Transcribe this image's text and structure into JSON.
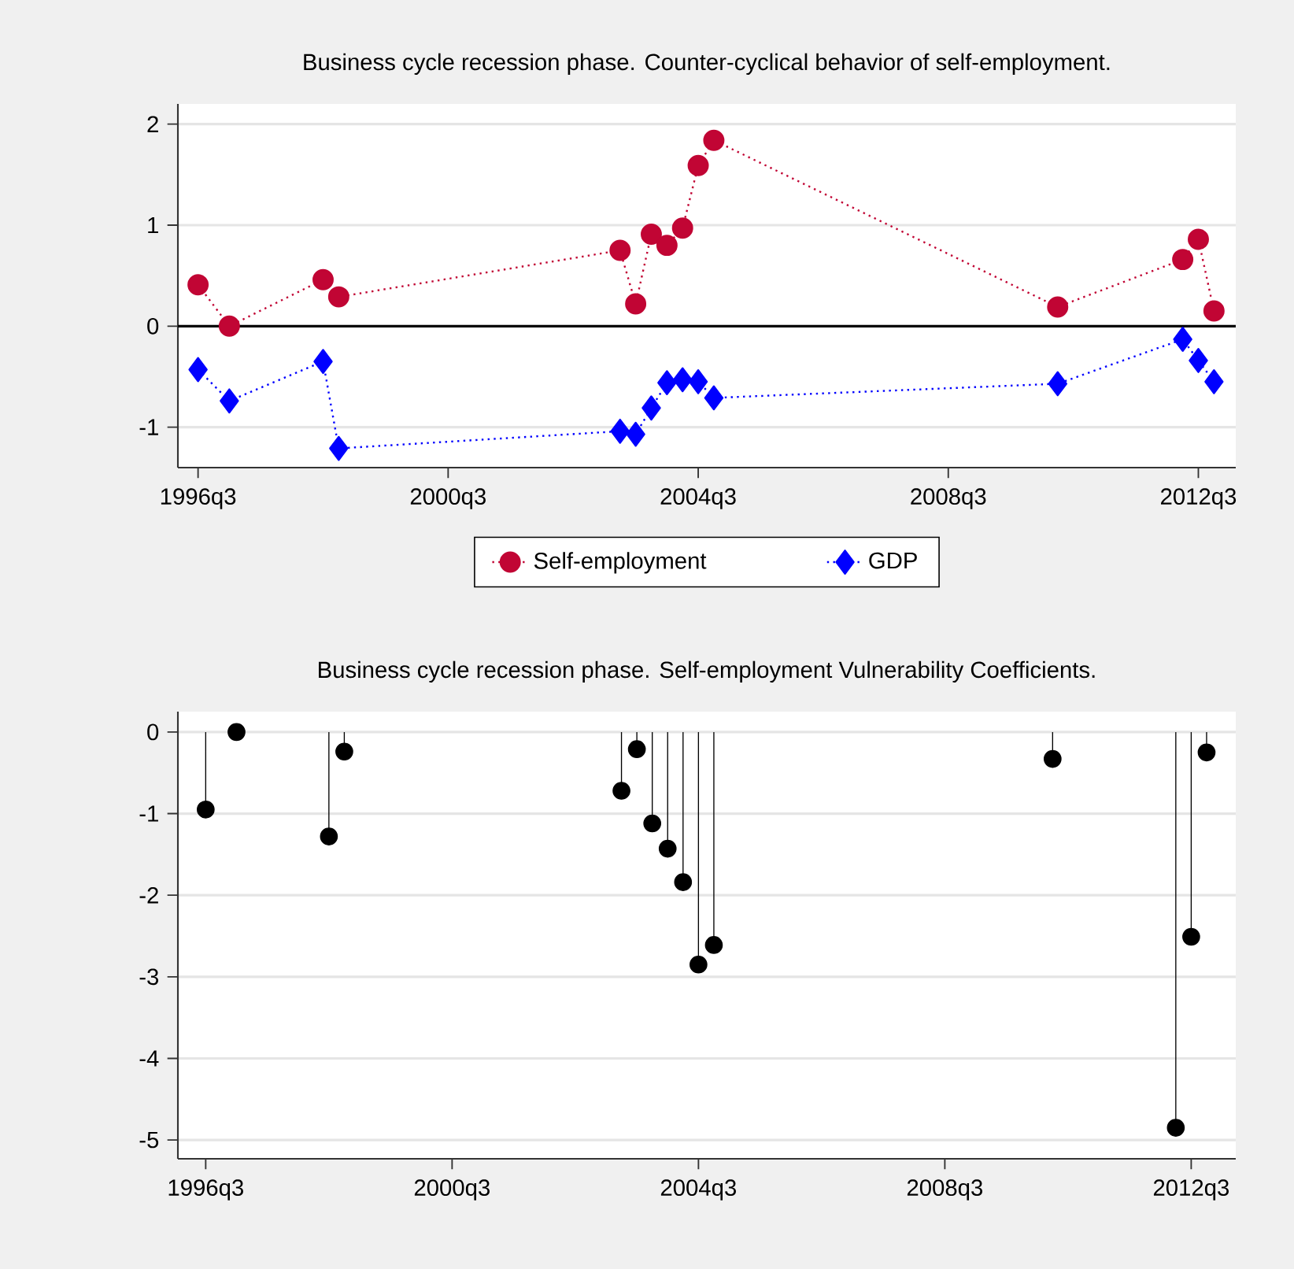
{
  "chart_data": [
    {
      "type": "line",
      "title": "Business cycle recession phase. Counter-cyclical behavior of self-employment.",
      "x": [
        "1996-07",
        "1997-01",
        "1998-07",
        "1998-10",
        "2003-04",
        "2003-07",
        "2003-10",
        "2004-01",
        "2004-04",
        "2004-07",
        "2004-10",
        "2010-04",
        "2012-04",
        "2012-07",
        "2012-10"
      ],
      "series": [
        {
          "name": "Self-employment",
          "color": "#c10534",
          "marker": "circle",
          "values": [
            0.41,
            0.0,
            0.46,
            0.29,
            0.75,
            0.22,
            0.91,
            0.8,
            0.97,
            1.59,
            1.84,
            0.19,
            0.66,
            0.86,
            0.15
          ]
        },
        {
          "name": "GDP",
          "color": "#0000ff",
          "marker": "diamond",
          "values": [
            -0.43,
            -0.74,
            -0.35,
            -1.21,
            -1.04,
            -1.07,
            -0.81,
            -0.56,
            -0.53,
            -0.55,
            -0.71,
            -0.57,
            -0.13,
            -0.34,
            -0.55
          ]
        }
      ],
      "line_style": "dotted",
      "grid": "y",
      "legend": "bottom",
      "xlim": [
        "1996-03-05",
        "2013-02-06"
      ],
      "xticks": [
        {
          "value": "1996-07",
          "label": "1996q3"
        },
        {
          "value": "2000-07",
          "label": "2000q3"
        },
        {
          "value": "2004-07",
          "label": "2004q3"
        },
        {
          "value": "2008-07",
          "label": "2008q3"
        },
        {
          "value": "2012-07",
          "label": "2012q3"
        }
      ],
      "ylim": [
        -1.4,
        2.2
      ],
      "yticks": [
        -1,
        0,
        1,
        2
      ],
      "ref_lines": [
        {
          "axis": "y",
          "value": 0,
          "color": "#000000"
        }
      ]
    },
    {
      "type": "lollipop",
      "title": "Business cycle recession phase. Self-employment Vulnerability Coefficients.",
      "x": [
        "1996-07",
        "1997-01",
        "1998-07",
        "1998-10",
        "2003-04",
        "2003-07",
        "2003-10",
        "2004-01",
        "2004-04",
        "2004-07",
        "2004-10",
        "2010-04",
        "2012-04",
        "2012-07",
        "2012-10"
      ],
      "values": [
        -0.95,
        0.0,
        -1.28,
        -0.24,
        -0.72,
        -0.21,
        -1.12,
        -1.43,
        -1.84,
        -2.85,
        -2.61,
        -0.33,
        -4.85,
        -2.51,
        -0.25
      ],
      "color": "#000000",
      "marker": "circle",
      "grid": "y",
      "xlim": [
        "1996-01-19",
        "2013-03-22"
      ],
      "xticks": [
        {
          "value": "1996-07",
          "label": "1996q3"
        },
        {
          "value": "2000-07",
          "label": "2000q3"
        },
        {
          "value": "2004-07",
          "label": "2004q3"
        },
        {
          "value": "2008-07",
          "label": "2008q3"
        },
        {
          "value": "2012-07",
          "label": "2012q3"
        }
      ],
      "ylim": [
        -5.23,
        0.25
      ],
      "yticks": [
        -5,
        -4,
        -3,
        -2,
        -1,
        0
      ]
    }
  ]
}
